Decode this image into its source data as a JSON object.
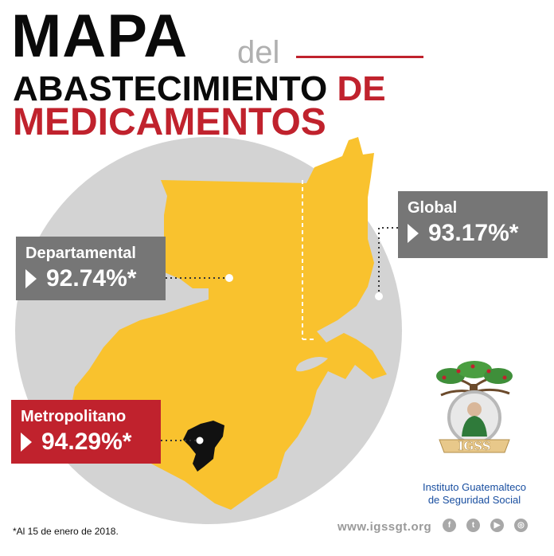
{
  "title": {
    "mapa": "MAPA",
    "del": "del",
    "line2_black": "ABASTECIMIENTO",
    "line2_red": "DE",
    "line3": "MEDICAMENTOS"
  },
  "callouts": {
    "global": {
      "label": "Global",
      "value": "93.17%*"
    },
    "departamental": {
      "label": "Departamental",
      "value": "92.74%*"
    },
    "metropolitano": {
      "label": "Metropolitano",
      "value": "94.29%*"
    }
  },
  "logo": {
    "banner": "IGSS",
    "line1": "Instituto Guatemalteco",
    "line2": "de Seguridad Social"
  },
  "footnote": "*Al 15 de enero de 2018.",
  "website": "www.igssgt.org",
  "social_icons": [
    "facebook-icon",
    "twitter-icon",
    "youtube-icon",
    "instagram-icon"
  ],
  "colors": {
    "red": "#c0222d",
    "map_yellow": "#f9c22e",
    "circle_gray": "#d3d3d3",
    "callout_gray": "#767676",
    "logo_blue": "#1a4fa0"
  }
}
